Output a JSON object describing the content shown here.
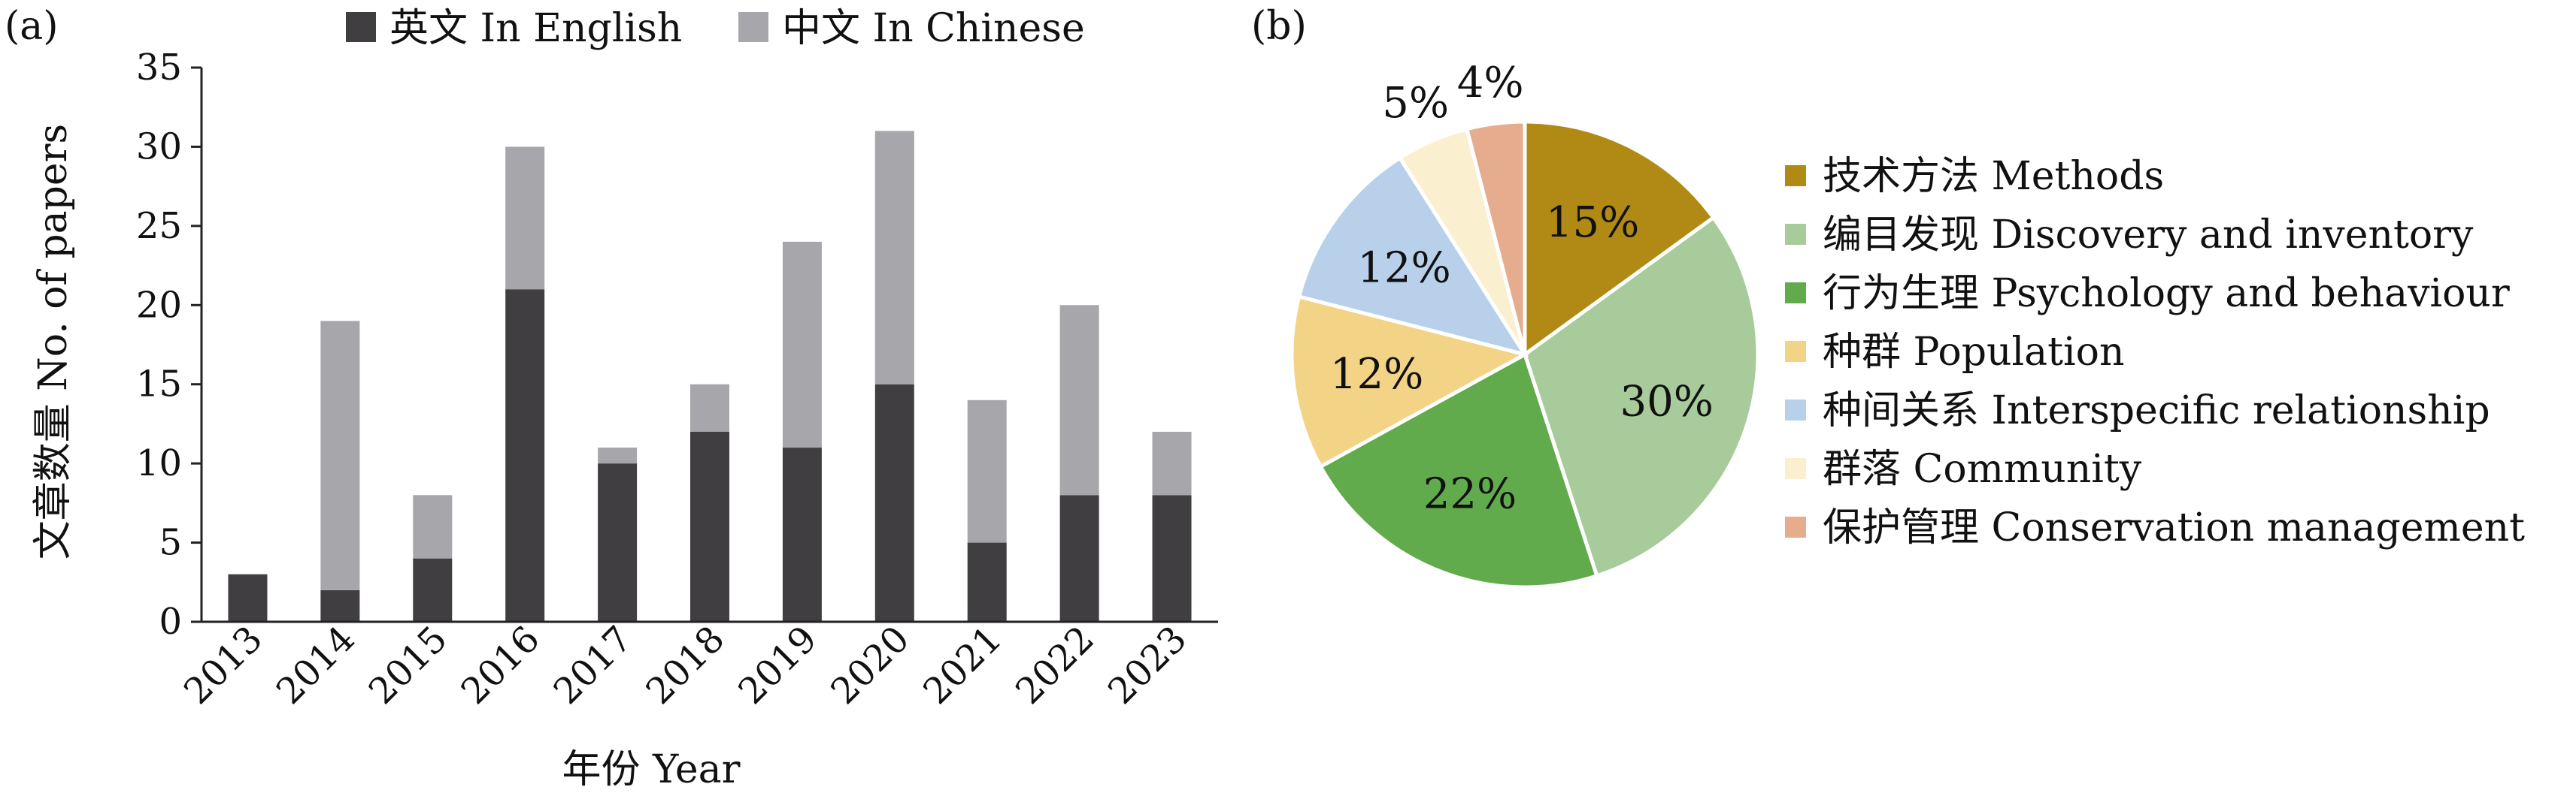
{
  "chart_data": [
    {
      "type": "bar",
      "stacked": true,
      "panel_label": "(a)",
      "categories": [
        "2013",
        "2014",
        "2015",
        "2016",
        "2017",
        "2018",
        "2019",
        "2020",
        "2021",
        "2022",
        "2023"
      ],
      "series": [
        {
          "name": "英文 In English",
          "color": "#403e41",
          "values": [
            3,
            2,
            4,
            21,
            10,
            12,
            11,
            15,
            5,
            8,
            8
          ]
        },
        {
          "name": "中文 In Chinese",
          "color": "#a7a6aa",
          "values": [
            0,
            17,
            4,
            9,
            1,
            3,
            13,
            16,
            9,
            12,
            4
          ]
        }
      ],
      "xlabel": "年份 Year",
      "ylabel": "文章数量 No. of papers",
      "ylim": [
        0,
        35
      ],
      "yticks": [
        "0",
        "5",
        "10",
        "15",
        "20",
        "25",
        "30",
        "35"
      ],
      "grid": false,
      "legend_position": "top"
    },
    {
      "type": "pie",
      "panel_label": "(b)",
      "slices": [
        {
          "label": "技术方法 Methods",
          "value": 15,
          "text": "15%",
          "color": "#b08a15"
        },
        {
          "label": "编目发现 Discovery and inventory",
          "value": 30,
          "text": "30%",
          "color": "#a8cb9b"
        },
        {
          "label": "行为生理 Psychology and behaviour",
          "value": 22,
          "text": "22%",
          "color": "#62ab4c"
        },
        {
          "label": "种群 Population",
          "value": 12,
          "text": "12%",
          "color": "#f3d486"
        },
        {
          "label": "种间关系 Interspecific relationship",
          "value": 12,
          "text": "12%",
          "color": "#b9d0ea"
        },
        {
          "label": "群落 Community",
          "value": 5,
          "text": "5%",
          "color": "#faefcf"
        },
        {
          "label": "保护管理 Conservation management",
          "value": 4,
          "text": "4%",
          "color": "#e5ac8d"
        }
      ],
      "legend_position": "right"
    }
  ]
}
